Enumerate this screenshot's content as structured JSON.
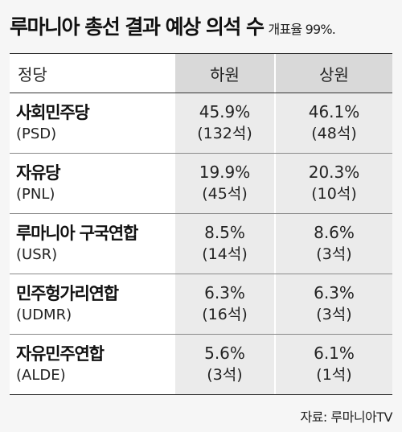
{
  "header": {
    "title": "루마니아 총선 결과 예상 의석 수",
    "subtitle": "개표율 99%."
  },
  "table": {
    "columns": [
      "정당",
      "하원",
      "상원"
    ],
    "rows": [
      {
        "party": "사회민주당",
        "abbr": "(PSD)",
        "lower_pct": "45.9%",
        "lower_seats": "(132석)",
        "upper_pct": "46.1%",
        "upper_seats": "(48석)"
      },
      {
        "party": "자유당",
        "abbr": "(PNL)",
        "lower_pct": "19.9%",
        "lower_seats": "(45석)",
        "upper_pct": "20.3%",
        "upper_seats": "(10석)"
      },
      {
        "party": "루마니아 구국연합",
        "abbr": "(USR)",
        "lower_pct": "8.5%",
        "lower_seats": "(14석)",
        "upper_pct": "8.6%",
        "upper_seats": "(3석)"
      },
      {
        "party": "민주헝가리연합",
        "abbr": "(UDMR)",
        "lower_pct": "6.3%",
        "lower_seats": "(16석)",
        "upper_pct": "6.3%",
        "upper_seats": "(3석)"
      },
      {
        "party": "자유민주연합",
        "abbr": "(ALDE)",
        "lower_pct": "5.6%",
        "lower_seats": "(3석)",
        "upper_pct": "6.1%",
        "upper_seats": "(1석)"
      }
    ]
  },
  "footer": {
    "source": "자료: 루마니아TV"
  }
}
